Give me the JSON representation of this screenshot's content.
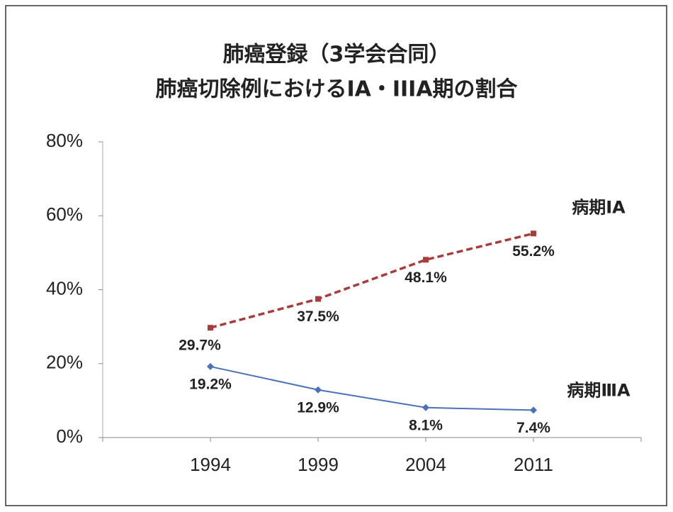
{
  "chart_data": {
    "type": "line",
    "title": "肺癌登録（3学会合同）",
    "subtitle": "肺癌切除例におけるIA・IIIA期の割合",
    "categories": [
      "1994",
      "1999",
      "2004",
      "2011"
    ],
    "series": [
      {
        "name": "病期ⅠA",
        "color": "#a83c3a",
        "line_style": "dashed",
        "marker": "square",
        "values": [
          29.7,
          37.5,
          48.1,
          55.2
        ],
        "value_labels": [
          "29.7%",
          "37.5%",
          "48.1%",
          "55.2%"
        ]
      },
      {
        "name": "病期ⅢA",
        "color": "#4a72b8",
        "line_style": "solid",
        "marker": "diamond",
        "values": [
          19.2,
          12.9,
          8.1,
          7.4
        ],
        "value_labels": [
          "19.2%",
          "12.9%",
          "8.1%",
          "7.4%"
        ]
      }
    ],
    "ylim": [
      0,
      80
    ],
    "yticks": [
      {
        "value": 0,
        "label": "0%"
      },
      {
        "value": 20,
        "label": "20%"
      },
      {
        "value": 40,
        "label": "40%"
      },
      {
        "value": 60,
        "label": "60%"
      },
      {
        "value": 80,
        "label": "80%"
      }
    ],
    "grid": false
  }
}
